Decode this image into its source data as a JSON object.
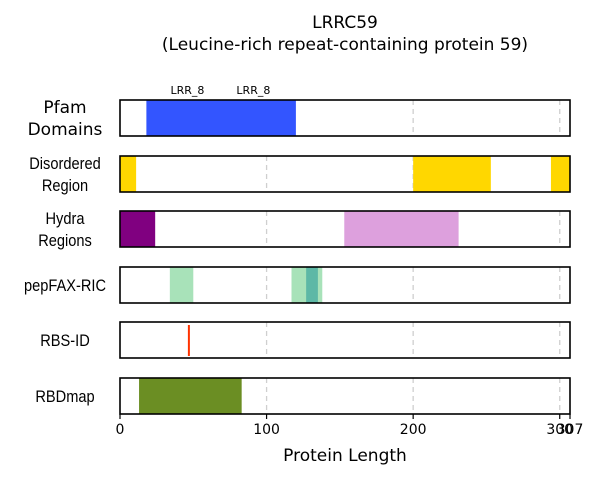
{
  "chart_data": {
    "type": "bar",
    "title": "LRRC59",
    "subtitle": "(Leucine-rich repeat-containing protein 59)",
    "xlabel": "Protein Length",
    "xlim": [
      0,
      307
    ],
    "xticks": [
      0,
      100,
      200,
      300,
      307
    ],
    "grid_lines": [
      100,
      200,
      300
    ],
    "tracks": [
      {
        "label_lines": [
          "Pfam",
          "Domains"
        ],
        "segments": [
          {
            "start": 18,
            "end": 120,
            "color": "#3355ff"
          }
        ],
        "domain_labels": [
          {
            "text": "LRR_8",
            "x": 46
          },
          {
            "text": "LRR_8",
            "x": 91
          }
        ]
      },
      {
        "label_lines": [
          "Disordered",
          "Region"
        ],
        "segments": [
          {
            "start": 0,
            "end": 11,
            "color": "#ffd700"
          },
          {
            "start": 200,
            "end": 253,
            "color": "#ffd700"
          },
          {
            "start": 294,
            "end": 307,
            "color": "#ffd700"
          }
        ]
      },
      {
        "label_lines": [
          "Hydra",
          "Regions"
        ],
        "segments": [
          {
            "start": 0,
            "end": 24,
            "color": "#800080"
          },
          {
            "start": 153,
            "end": 231,
            "color": "#dda0dd"
          }
        ]
      },
      {
        "label_lines": [
          "pepFAX-RIC"
        ],
        "segments": [
          {
            "start": 34,
            "end": 50,
            "color": "#a8e2b9"
          },
          {
            "start": 117,
            "end": 138,
            "color": "#a8e2b9"
          },
          {
            "start": 127,
            "end": 135,
            "color": "#5db8a6"
          }
        ]
      },
      {
        "label_lines": [
          "RBS-ID"
        ],
        "segments": [],
        "site_markers": [
          {
            "pos": 47,
            "color": "#ff3300"
          }
        ]
      },
      {
        "label_lines": [
          "RBDmap"
        ],
        "segments": [
          {
            "start": 13,
            "end": 83,
            "color": "#6b8e23"
          }
        ]
      }
    ]
  }
}
